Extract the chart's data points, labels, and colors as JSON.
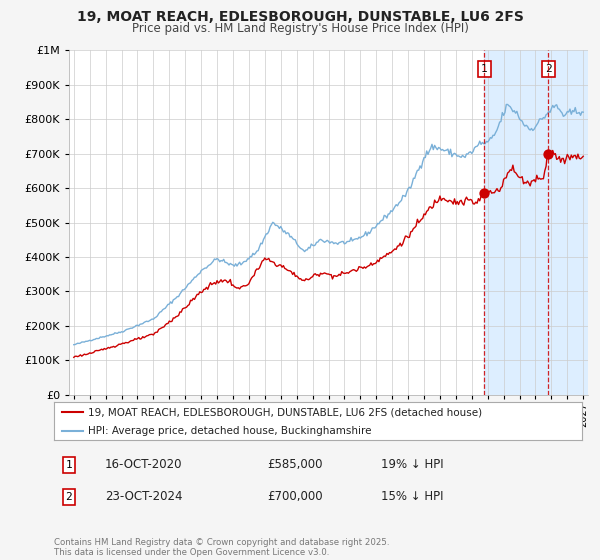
{
  "title": "19, MOAT REACH, EDLESBOROUGH, DUNSTABLE, LU6 2FS",
  "subtitle": "Price paid vs. HM Land Registry's House Price Index (HPI)",
  "legend_house": "19, MOAT REACH, EDLESBOROUGH, DUNSTABLE, LU6 2FS (detached house)",
  "legend_hpi": "HPI: Average price, detached house, Buckinghamshire",
  "sale1_label": "1",
  "sale1_date": "16-OCT-2020",
  "sale1_price": "£585,000",
  "sale1_hpi": "19% ↓ HPI",
  "sale2_label": "2",
  "sale2_date": "23-OCT-2024",
  "sale2_price": "£700,000",
  "sale2_hpi": "15% ↓ HPI",
  "sale1_x": 2020.79,
  "sale1_y": 585000,
  "sale2_x": 2024.81,
  "sale2_y": 700000,
  "house_color": "#cc0000",
  "hpi_color": "#7ab0d8",
  "background_color": "#f5f5f5",
  "plot_bg_color": "#ffffff",
  "shade_color": "#ddeeff",
  "grid_color": "#cccccc",
  "footnote": "Contains HM Land Registry data © Crown copyright and database right 2025.\nThis data is licensed under the Open Government Licence v3.0.",
  "ylim": [
    0,
    1000000
  ],
  "xlim_start": 1994.7,
  "xlim_end": 2027.3
}
